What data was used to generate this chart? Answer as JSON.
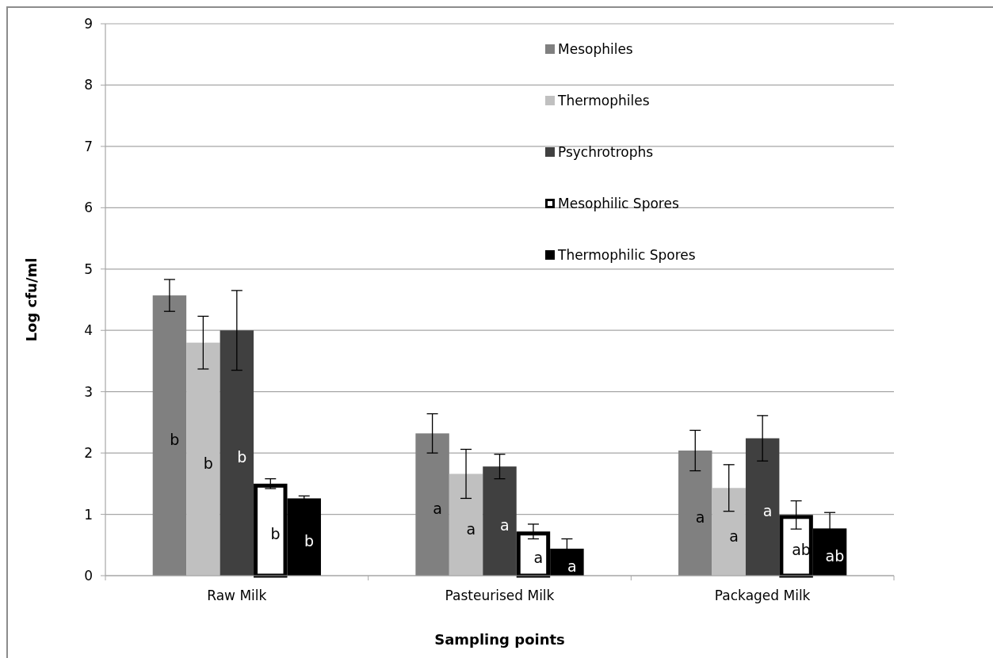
{
  "chart_data": {
    "type": "bar",
    "xlabel": "Sampling points",
    "ylabel": "Log cfu/ml",
    "categories": [
      "Raw Milk",
      "Pasteurised Milk",
      "Packaged Milk"
    ],
    "series": [
      {
        "name": "Mesophiles",
        "color": "#808080",
        "values": [
          4.57,
          2.32,
          2.04
        ],
        "errors": [
          0.26,
          0.32,
          0.33
        ],
        "value_labels": [
          "b",
          "a",
          "a"
        ]
      },
      {
        "name": "Thermophiles",
        "color": "#c0c0c0",
        "values": [
          3.8,
          1.66,
          1.43
        ],
        "errors": [
          0.43,
          0.4,
          0.38
        ],
        "value_labels": [
          "b",
          "a",
          "a"
        ]
      },
      {
        "name": "Psychrotrophs",
        "color": "#404040",
        "values": [
          4.0,
          1.78,
          2.24
        ],
        "errors": [
          0.65,
          0.2,
          0.37
        ],
        "value_labels": [
          "b",
          "a",
          "a"
        ]
      },
      {
        "name": "Mesophilic Spores",
        "color": "#ffffff",
        "values": [
          1.5,
          0.72,
          0.99
        ],
        "errors": [
          0.08,
          0.12,
          0.23
        ],
        "value_labels": [
          "b",
          "a",
          "ab"
        ]
      },
      {
        "name": "Thermophilic Spores",
        "color": "#000000",
        "values": [
          1.26,
          0.44,
          0.77
        ],
        "errors": [
          0.04,
          0.16,
          0.26
        ],
        "value_labels": [
          "b",
          "a",
          "ab"
        ]
      }
    ],
    "ylim": [
      0,
      9
    ],
    "yticks": [
      0,
      1,
      2,
      3,
      4,
      5,
      6,
      7,
      8,
      9
    ],
    "grid": "y",
    "legend": "top right"
  }
}
